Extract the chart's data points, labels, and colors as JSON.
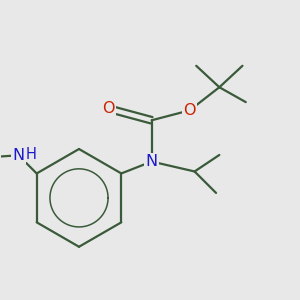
{
  "background_color": "#e8e8e8",
  "bond_color": "#3a5a3a",
  "bond_width": 1.6,
  "atom_colors": {
    "N": "#1a1acc",
    "O": "#cc2200",
    "C": "#3a5a3a"
  },
  "font_size_atoms": 11.5
}
